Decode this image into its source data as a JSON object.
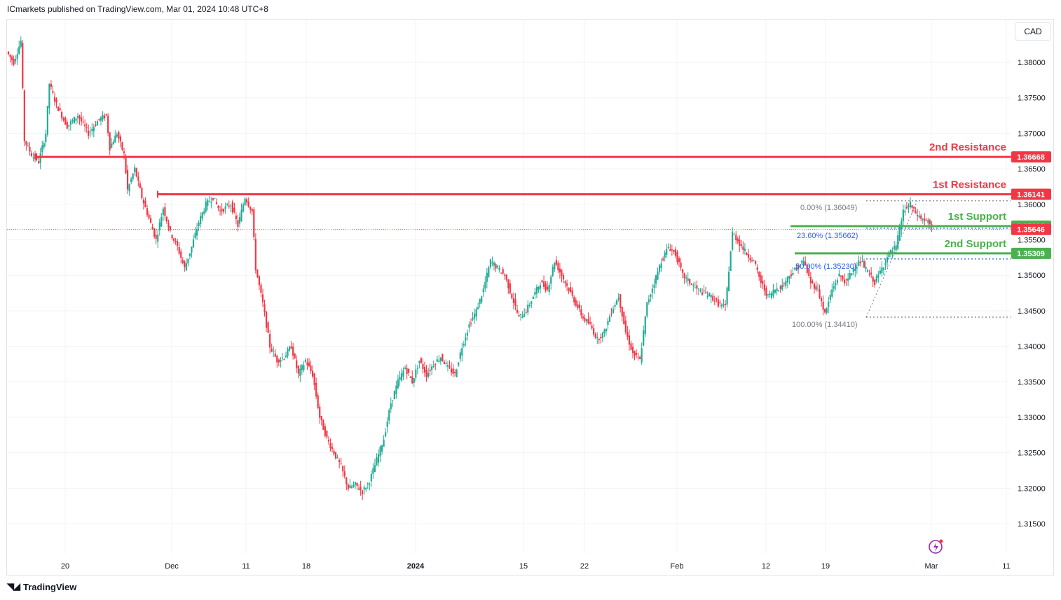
{
  "header": {
    "published": "ICmarkets published on TradingView.com, Mar 01, 2024 10:48 UTC+8"
  },
  "currency_button": "CAD",
  "footer": {
    "brand": "TradingView",
    "logo_icon": "tradingview-logo-icon"
  },
  "colors": {
    "up": "#22ab94",
    "down": "#f23645",
    "resistance": "#f23645",
    "support": "#4caf50",
    "fib": "#2962ff",
    "grid": "#f0f3fa",
    "axis_text": "#131722"
  },
  "chart_data": {
    "type": "candlestick",
    "symbol_currency": "CAD",
    "y_axis": {
      "ticks": [
        "1.38000",
        "1.37500",
        "1.37000",
        "1.36500",
        "1.36000",
        "1.35500",
        "1.35000",
        "1.34500",
        "1.34000",
        "1.33500",
        "1.33000",
        "1.32500",
        "1.32000",
        "1.31500"
      ],
      "range": [
        1.313,
        1.385
      ]
    },
    "x_axis": {
      "ticks": [
        "20",
        "Dec",
        "11",
        "18",
        "2024",
        "15",
        "22",
        "Feb",
        "12",
        "19",
        "Mar",
        "11"
      ],
      "bold_ticks": [
        "2024"
      ]
    },
    "levels": [
      {
        "label": "2nd Resistance",
        "value": 1.36668,
        "value_text": "1.36668",
        "kind": "resistance"
      },
      {
        "label": "1st Resistance",
        "value": 1.36141,
        "value_text": "1.36141",
        "kind": "resistance"
      },
      {
        "label": "1st Support",
        "value": 1.35692,
        "value_text": "1.35692",
        "kind": "support"
      },
      {
        "label": "2nd Support",
        "value": 1.35309,
        "value_text": "1.35309",
        "kind": "support"
      }
    ],
    "last_price": {
      "value": 1.35646,
      "value_text": "1.35646"
    },
    "fibonacci": [
      {
        "label": "0.00% (1.36049)",
        "value": 1.36049
      },
      {
        "label": "23.60% (1.35662)",
        "value": 1.35662
      },
      {
        "label": "50.00% (1.35230)",
        "value": 1.3523
      },
      {
        "label": "100.00% (1.34410)",
        "value": 1.3441
      }
    ],
    "price_path": [
      [
        0,
        1.3815
      ],
      [
        4,
        1.38
      ],
      [
        8,
        1.383
      ],
      [
        10,
        1.369
      ],
      [
        14,
        1.367
      ],
      [
        18,
        1.366
      ],
      [
        22,
        1.37
      ],
      [
        24,
        1.377
      ],
      [
        28,
        1.374
      ],
      [
        34,
        1.371
      ],
      [
        40,
        1.3725
      ],
      [
        46,
        1.37
      ],
      [
        52,
        1.372
      ],
      [
        56,
        1.3725
      ],
      [
        58,
        1.368
      ],
      [
        62,
        1.37
      ],
      [
        66,
        1.367
      ],
      [
        68,
        1.362
      ],
      [
        72,
        1.365
      ],
      [
        76,
        1.361
      ],
      [
        80,
        1.358
      ],
      [
        84,
        1.355
      ],
      [
        88,
        1.3595
      ],
      [
        92,
        1.356
      ],
      [
        96,
        1.354
      ],
      [
        100,
        1.351
      ],
      [
        104,
        1.354
      ],
      [
        108,
        1.3575
      ],
      [
        112,
        1.36
      ],
      [
        116,
        1.361
      ],
      [
        120,
        1.359
      ],
      [
        126,
        1.36
      ],
      [
        130,
        1.357
      ],
      [
        134,
        1.361
      ],
      [
        138,
        1.359
      ],
      [
        140,
        1.351
      ],
      [
        144,
        1.346
      ],
      [
        148,
        1.34
      ],
      [
        152,
        1.338
      ],
      [
        156,
        1.3385
      ],
      [
        160,
        1.34
      ],
      [
        164,
        1.336
      ],
      [
        168,
        1.338
      ],
      [
        172,
        1.336
      ],
      [
        176,
        1.33
      ],
      [
        180,
        1.327
      ],
      [
        184,
        1.325
      ],
      [
        188,
        1.323
      ],
      [
        192,
        1.32
      ],
      [
        196,
        1.3205
      ],
      [
        200,
        1.3195
      ],
      [
        204,
        1.321
      ],
      [
        208,
        1.324
      ],
      [
        212,
        1.327
      ],
      [
        216,
        1.332
      ],
      [
        220,
        1.335
      ],
      [
        224,
        1.337
      ],
      [
        228,
        1.335
      ],
      [
        232,
        1.338
      ],
      [
        236,
        1.336
      ],
      [
        240,
        1.3375
      ],
      [
        244,
        1.3385
      ],
      [
        248,
        1.337
      ],
      [
        252,
        1.336
      ],
      [
        256,
        1.34
      ],
      [
        260,
        1.343
      ],
      [
        264,
        1.345
      ],
      [
        268,
        1.348
      ],
      [
        272,
        1.352
      ],
      [
        276,
        1.351
      ],
      [
        280,
        1.35
      ],
      [
        284,
        1.347
      ],
      [
        288,
        1.344
      ],
      [
        292,
        1.345
      ],
      [
        296,
        1.347
      ],
      [
        300,
        1.349
      ],
      [
        304,
        1.348
      ],
      [
        308,
        1.352
      ],
      [
        312,
        1.35
      ],
      [
        316,
        1.348
      ],
      [
        320,
        1.346
      ],
      [
        324,
        1.344
      ],
      [
        328,
        1.343
      ],
      [
        332,
        1.341
      ],
      [
        336,
        1.342
      ],
      [
        340,
        1.345
      ],
      [
        344,
        1.347
      ],
      [
        348,
        1.342
      ],
      [
        352,
        1.339
      ],
      [
        356,
        1.338
      ],
      [
        360,
        1.346
      ],
      [
        364,
        1.349
      ],
      [
        368,
        1.352
      ],
      [
        372,
        1.354
      ],
      [
        376,
        1.353
      ],
      [
        380,
        1.35
      ],
      [
        384,
        1.349
      ],
      [
        388,
        1.348
      ],
      [
        392,
        1.3475
      ],
      [
        396,
        1.347
      ],
      [
        400,
        1.346
      ],
      [
        404,
        1.3455
      ],
      [
        408,
        1.356
      ],
      [
        412,
        1.3545
      ],
      [
        416,
        1.353
      ],
      [
        420,
        1.352
      ],
      [
        424,
        1.349
      ],
      [
        428,
        1.347
      ],
      [
        432,
        1.348
      ],
      [
        436,
        1.3485
      ],
      [
        440,
        1.35
      ],
      [
        444,
        1.351
      ],
      [
        448,
        1.352
      ],
      [
        452,
        1.349
      ],
      [
        456,
        1.348
      ],
      [
        460,
        1.3445
      ],
      [
        464,
        1.348
      ],
      [
        468,
        1.35
      ],
      [
        472,
        1.349
      ],
      [
        476,
        1.351
      ],
      [
        480,
        1.352
      ],
      [
        484,
        1.3505
      ],
      [
        488,
        1.349
      ],
      [
        492,
        1.351
      ],
      [
        496,
        1.353
      ],
      [
        500,
        1.354
      ],
      [
        504,
        1.359
      ],
      [
        508,
        1.36
      ],
      [
        510,
        1.359
      ],
      [
        514,
        1.358
      ],
      [
        518,
        1.3575
      ],
      [
        520,
        1.3566
      ]
    ]
  }
}
